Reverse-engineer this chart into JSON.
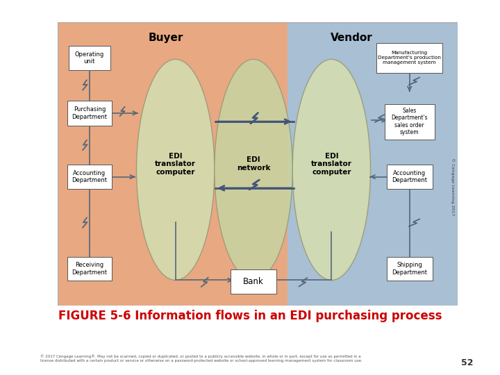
{
  "bg_color": "#ffffff",
  "figure_title": "FIGURE 5-6 Information flows in an EDI purchasing process",
  "figure_title_color": "#cc0000",
  "figure_title_size": 12,
  "copyright_text": "© 2017 Cengage Learning®. May not be scanned, copied or duplicated, or posted to a publicly accessible website, in whole or in part, except for use as permitted in a\nlicense distributed with a certain product or service or otherwise on a password-protected website or school-approved learning management system for classroom use.",
  "page_number": "52",
  "buyer_bg": "#e8a882",
  "vendor_bg": "#a8bfd4",
  "buyer_label": "Buyer",
  "vendor_label": "Vendor",
  "ellipse_fill": "#d4dcb0",
  "ellipse_edge": "#999977",
  "edi_left_label": "EDI\ntranslator\ncomputer",
  "edi_center_label": "EDI\nnetwork",
  "edi_right_label": "EDI\ntranslator\ncomputer",
  "arrow_color": "#445577",
  "box_edge": "#555555",
  "copyright_rotate_text": "© Cengage Learning 2017",
  "diagram_border_color": "#aaaaaa",
  "line_color": "#556677"
}
